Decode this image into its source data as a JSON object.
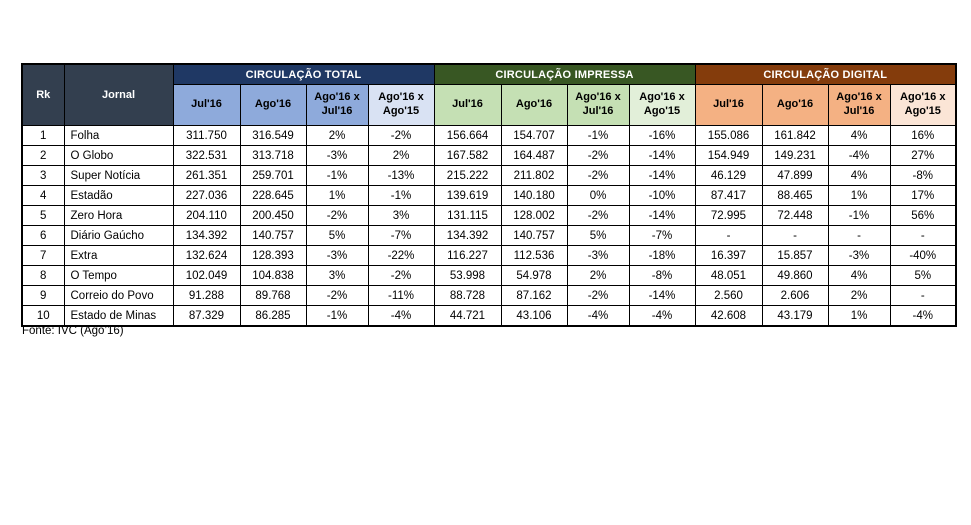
{
  "colors": {
    "border": "#000000",
    "text": "#000000",
    "header_text": "#ffffff",
    "corner_bg": "#333F4F",
    "total_dark": "#1F3864",
    "total_mid": "#8EAADB",
    "total_light": "#D9E2F3",
    "impressa_dark": "#385723",
    "impressa_mid": "#C5E0B4",
    "impressa_light": "#E2EFD9",
    "digital_dark": "#843C0C",
    "digital_mid": "#F4B183",
    "digital_light": "#FBE5D6"
  },
  "chart_data": {
    "type": "table",
    "corner": {
      "rk": "Rk",
      "jornal": "Jornal"
    },
    "groups": [
      "CIRCULAÇÃO TOTAL",
      "CIRCULAÇÃO IMPRESSA",
      "CIRCULAÇÃO DIGITAL"
    ],
    "sub_columns": [
      "Jul'16",
      "Ago'16",
      "Ago'16 x Jul'16",
      "Ago'16 x Ago'15"
    ],
    "rows": [
      {
        "rk": "1",
        "jornal": "Folha",
        "total": [
          "311.750",
          "316.549",
          "2%",
          "-2%"
        ],
        "impressa": [
          "156.664",
          "154.707",
          "-1%",
          "-16%"
        ],
        "digital": [
          "155.086",
          "161.842",
          "4%",
          "16%"
        ]
      },
      {
        "rk": "2",
        "jornal": "O Globo",
        "total": [
          "322.531",
          "313.718",
          "-3%",
          "2%"
        ],
        "impressa": [
          "167.582",
          "164.487",
          "-2%",
          "-14%"
        ],
        "digital": [
          "154.949",
          "149.231",
          "-4%",
          "27%"
        ]
      },
      {
        "rk": "3",
        "jornal": "Super Notícia",
        "total": [
          "261.351",
          "259.701",
          "-1%",
          "-13%"
        ],
        "impressa": [
          "215.222",
          "211.802",
          "-2%",
          "-14%"
        ],
        "digital": [
          "46.129",
          "47.899",
          "4%",
          "-8%"
        ]
      },
      {
        "rk": "4",
        "jornal": "Estadão",
        "total": [
          "227.036",
          "228.645",
          "1%",
          "-1%"
        ],
        "impressa": [
          "139.619",
          "140.180",
          "0%",
          "-10%"
        ],
        "digital": [
          "87.417",
          "88.465",
          "1%",
          "17%"
        ]
      },
      {
        "rk": "5",
        "jornal": "Zero Hora",
        "total": [
          "204.110",
          "200.450",
          "-2%",
          "3%"
        ],
        "impressa": [
          "131.115",
          "128.002",
          "-2%",
          "-14%"
        ],
        "digital": [
          "72.995",
          "72.448",
          "-1%",
          "56%"
        ]
      },
      {
        "rk": "6",
        "jornal": "Diário Gaúcho",
        "total": [
          "134.392",
          "140.757",
          "5%",
          "-7%"
        ],
        "impressa": [
          "134.392",
          "140.757",
          "5%",
          "-7%"
        ],
        "digital": [
          "-",
          "-",
          "-",
          "-"
        ]
      },
      {
        "rk": "7",
        "jornal": "Extra",
        "total": [
          "132.624",
          "128.393",
          "-3%",
          "-22%"
        ],
        "impressa": [
          "116.227",
          "112.536",
          "-3%",
          "-18%"
        ],
        "digital": [
          "16.397",
          "15.857",
          "-3%",
          "-40%"
        ]
      },
      {
        "rk": "8",
        "jornal": "O Tempo",
        "total": [
          "102.049",
          "104.838",
          "3%",
          "-2%"
        ],
        "impressa": [
          "53.998",
          "54.978",
          "2%",
          "-8%"
        ],
        "digital": [
          "48.051",
          "49.860",
          "4%",
          "5%"
        ]
      },
      {
        "rk": "9",
        "jornal": "Correio do Povo",
        "total": [
          "91.288",
          "89.768",
          "-2%",
          "-11%"
        ],
        "impressa": [
          "88.728",
          "87.162",
          "-2%",
          "-14%"
        ],
        "digital": [
          "2.560",
          "2.606",
          "2%",
          "-"
        ]
      },
      {
        "rk": "10",
        "jornal": "Estado de Minas",
        "total": [
          "87.329",
          "86.285",
          "-1%",
          "-4%"
        ],
        "impressa": [
          "44.721",
          "43.106",
          "-4%",
          "-4%"
        ],
        "digital": [
          "42.608",
          "43.179",
          "1%",
          "-4%"
        ]
      }
    ],
    "source": "Fonte: IVC (Ago’16)"
  }
}
